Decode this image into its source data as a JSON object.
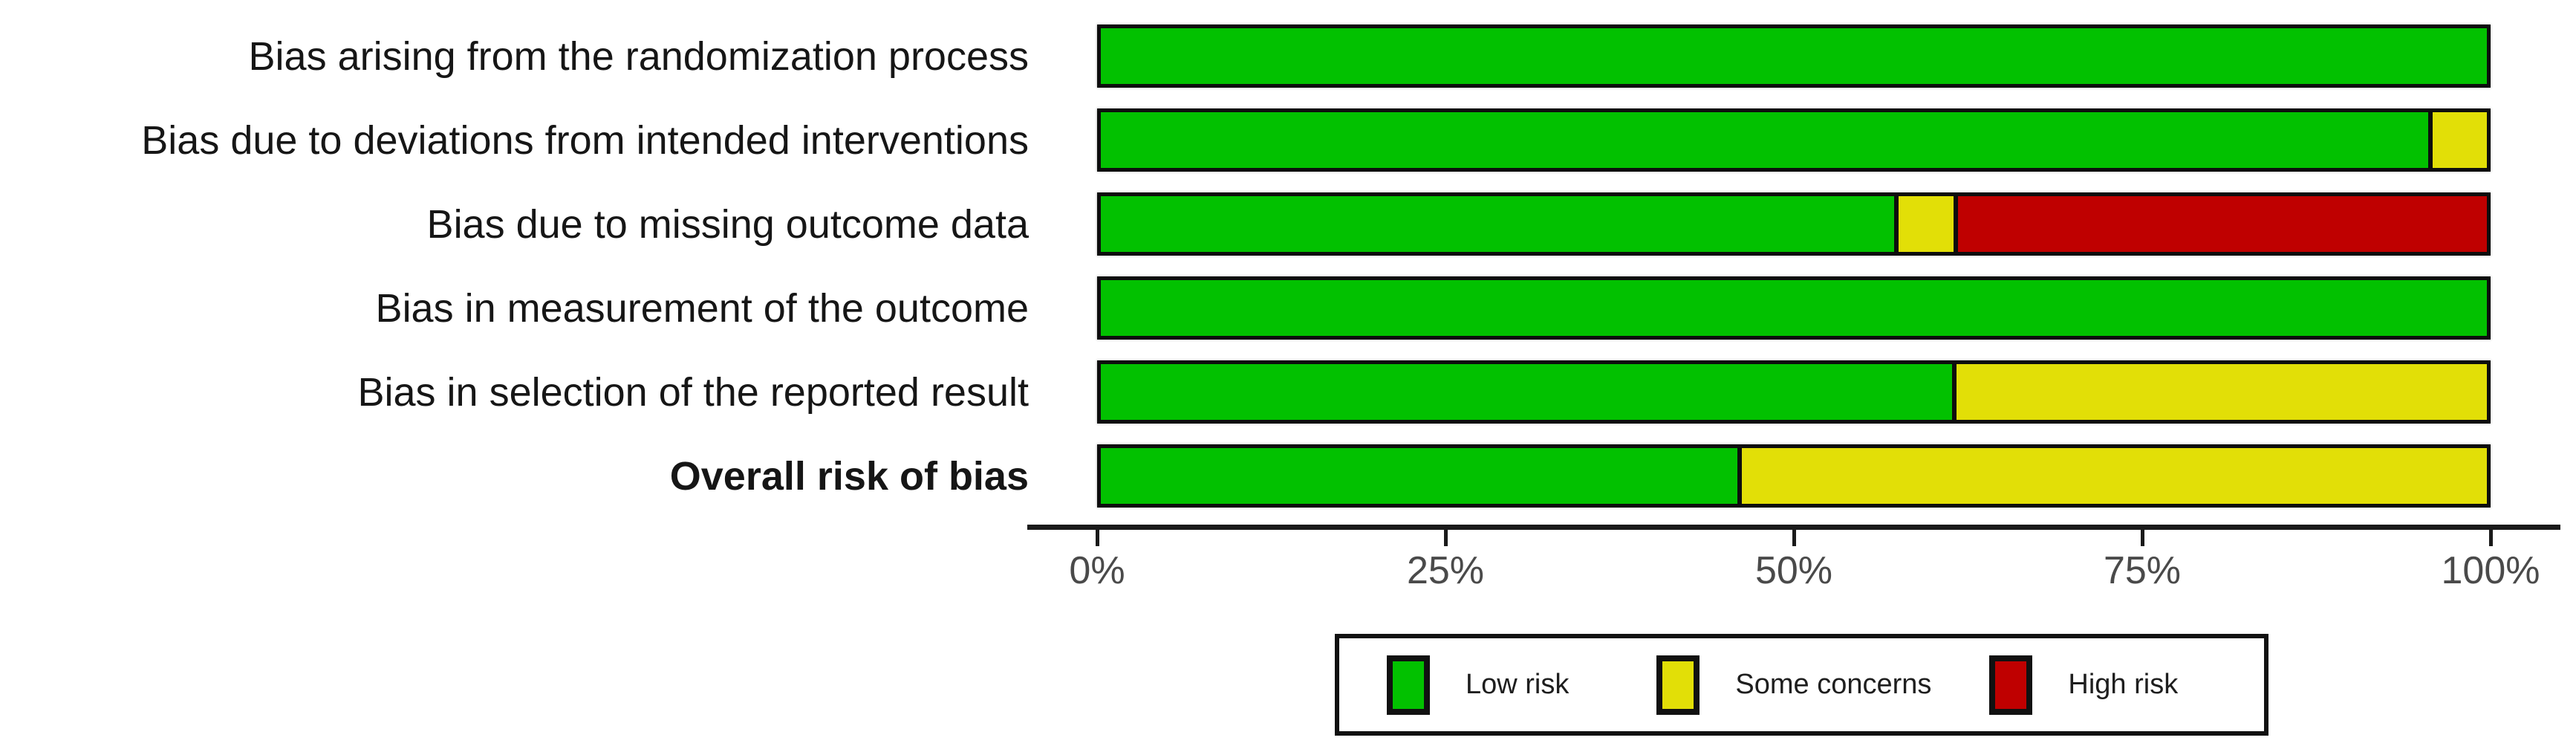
{
  "chart_data": {
    "type": "bar",
    "orientation": "horizontal-stacked",
    "title": "",
    "xlabel": "",
    "ylabel": "",
    "xlim": [
      0,
      100
    ],
    "grid": false,
    "legend_position": "bottom",
    "x_ticks": [
      "0%",
      "25%",
      "50%",
      "75%",
      "100%"
    ],
    "categories": [
      "Bias arising from the randomization process",
      "Bias due to deviations from intended interventions",
      "Bias due to missing outcome data",
      "Bias in measurement of the outcome",
      "Bias in selection of the reported result",
      "Overall risk of bias"
    ],
    "bold_category_index": 5,
    "series": [
      {
        "name": "Low risk",
        "color": "#02C100",
        "values": [
          100,
          96.1,
          57.6,
          100,
          61.6,
          46.1
        ]
      },
      {
        "name": "Some concerns",
        "color": "#E2DF07",
        "values": [
          0,
          3.9,
          4.0,
          0,
          38.4,
          53.9
        ]
      },
      {
        "name": "High risk",
        "color": "#BF0000",
        "values": [
          0,
          0,
          38.4,
          0,
          0,
          0
        ]
      }
    ]
  }
}
